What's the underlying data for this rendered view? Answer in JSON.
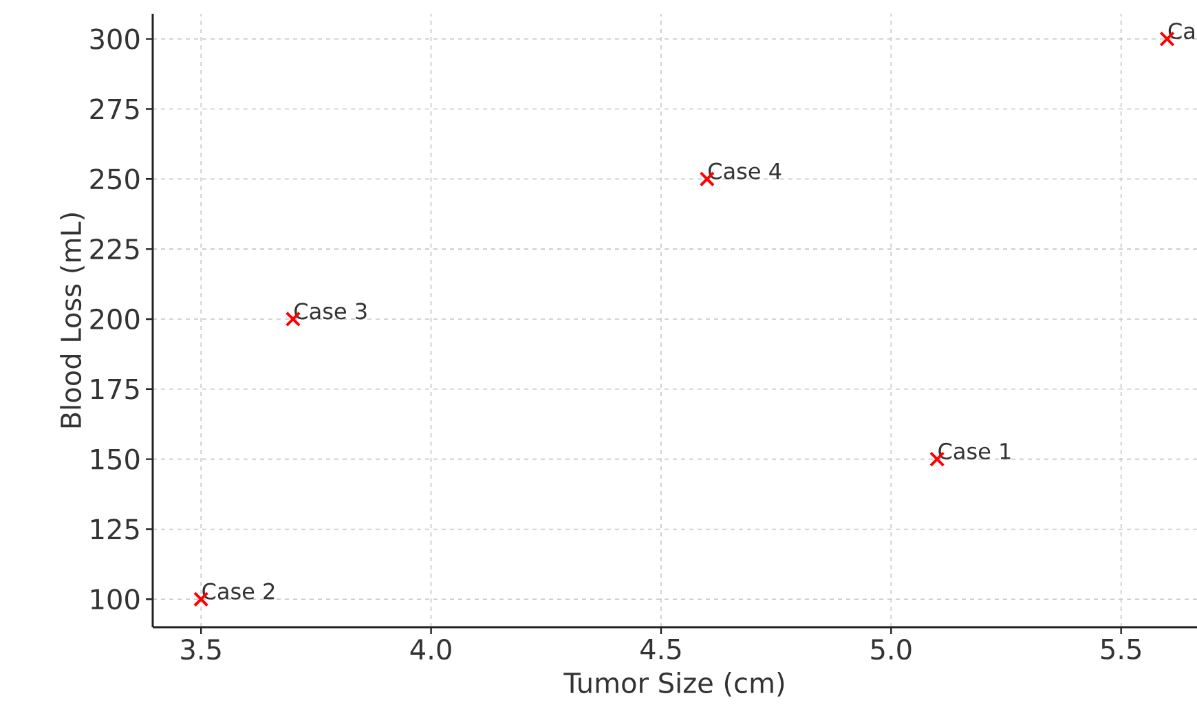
{
  "chart_data": {
    "type": "scatter",
    "xlabel": "Tumor Size (cm)",
    "ylabel": "Blood Loss (mL)",
    "x": [
      5.1,
      3.5,
      3.7,
      4.6,
      5.6
    ],
    "series": [
      {
        "color": "#ff0000",
        "values": [
          150,
          100,
          200,
          250,
          300
        ]
      }
    ],
    "marker": "cross",
    "grid": true,
    "xlim": [
      3.395,
      5.665
    ],
    "ylim": [
      90,
      309
    ],
    "xticks": [
      {
        "value": 3.5,
        "label": "3.5"
      },
      {
        "value": 4.0,
        "label": "4.0"
      },
      {
        "value": 4.5,
        "label": "4.5"
      },
      {
        "value": 5.0,
        "label": "5.0"
      },
      {
        "value": 5.5,
        "label": "5.5"
      }
    ],
    "yticks": [
      100,
      125,
      150,
      175,
      200,
      225,
      250,
      275,
      300
    ],
    "annotations": [
      {
        "text": "Case 1",
        "x": 5.1,
        "y": 150
      },
      {
        "text": "Case 2",
        "x": 3.5,
        "y": 100
      },
      {
        "text": "Case 3",
        "x": 3.7,
        "y": 200
      },
      {
        "text": "Case 4",
        "x": 4.6,
        "y": 250
      },
      {
        "text": "Ca",
        "x": 5.6,
        "y": 300
      }
    ]
  }
}
